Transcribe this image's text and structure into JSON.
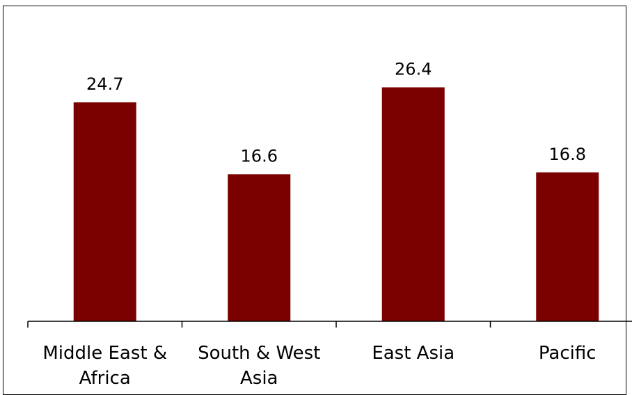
{
  "chart_data": {
    "type": "bar",
    "categories": [
      [
        "Middle East &",
        "Africa"
      ],
      [
        "South & West",
        "Asia"
      ],
      [
        "East Asia"
      ],
      [
        "Pacific"
      ]
    ],
    "values": [
      24.7,
      16.6,
      26.4,
      16.8
    ],
    "value_labels": [
      "24.7",
      "16.6",
      "26.4",
      "16.8"
    ],
    "title": "",
    "xlabel": "",
    "ylabel": "",
    "ylim": [
      0,
      30
    ],
    "grid": false,
    "legend": "none",
    "bar_color": "#7B0000",
    "frame_color": "#000000"
  }
}
